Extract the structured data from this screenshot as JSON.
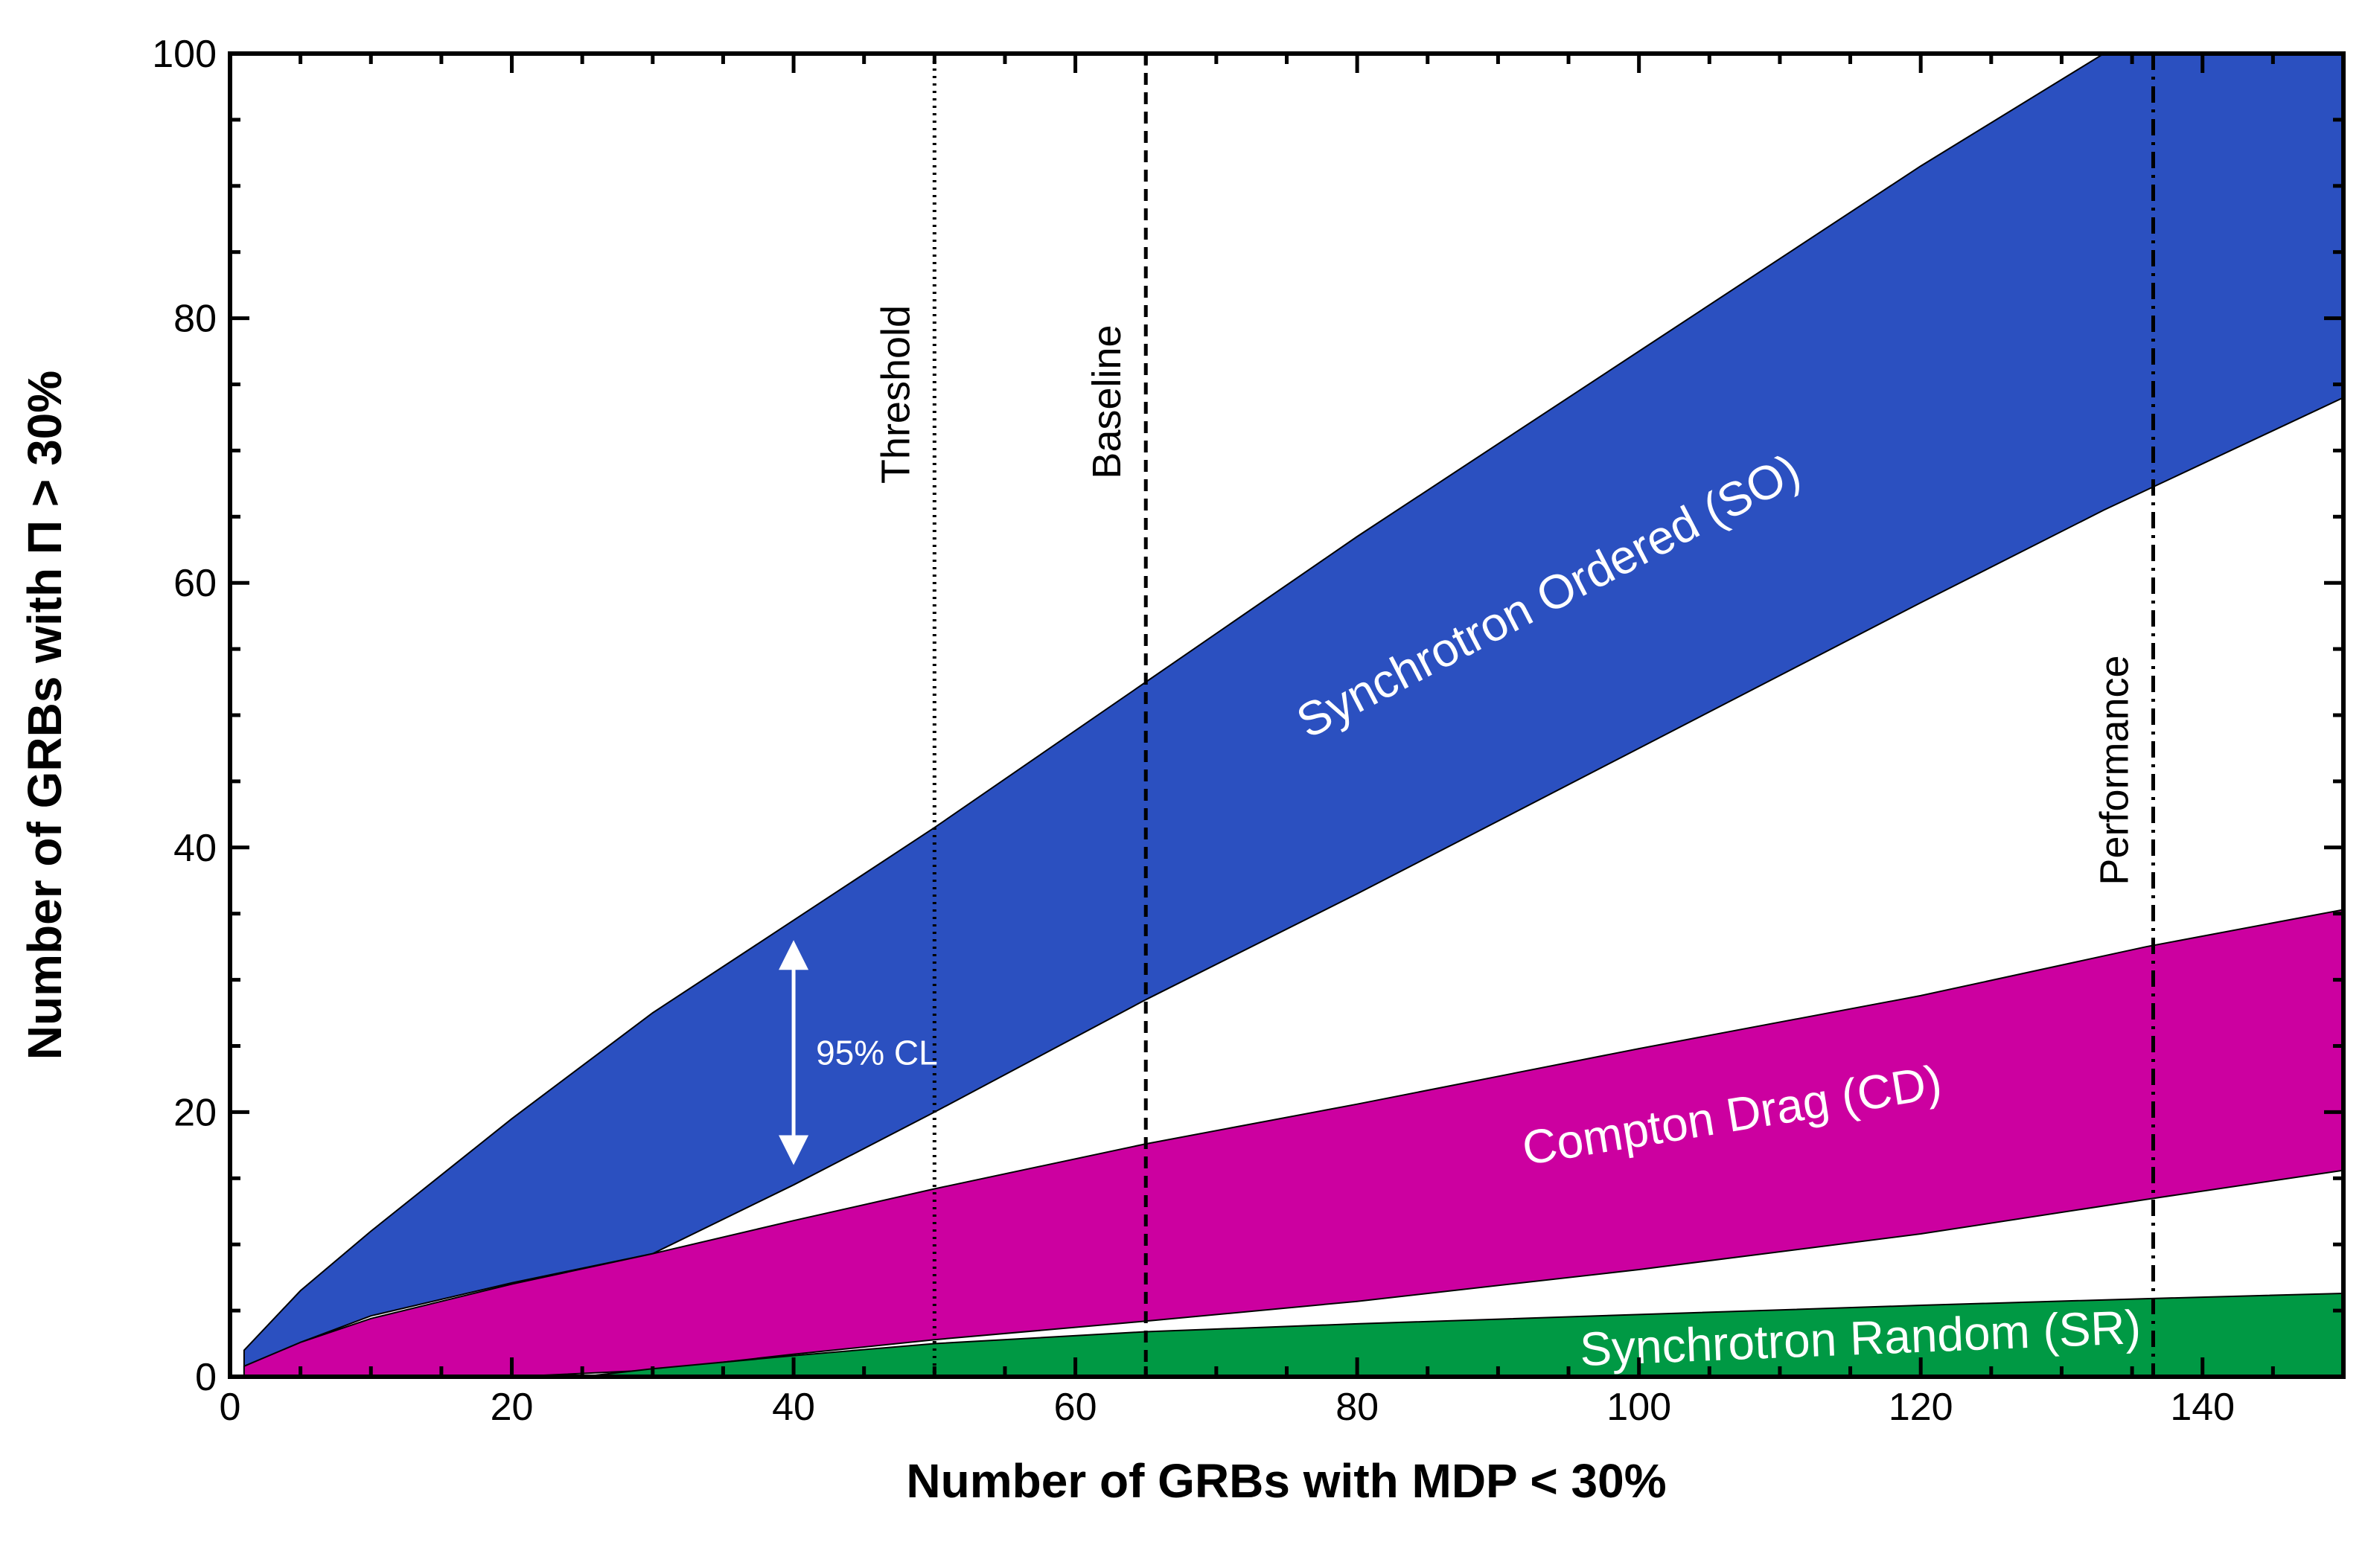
{
  "chart_data": {
    "type": "area",
    "title": "",
    "xlabel": "Number of GRBs with MDP < 30%",
    "ylabel": "Number of GRBs with Π > 30%",
    "xlim": [
      0,
      150
    ],
    "ylim": [
      0,
      100
    ],
    "xticks": [
      0,
      20,
      40,
      60,
      80,
      100,
      120,
      140
    ],
    "yticks": [
      0,
      20,
      40,
      60,
      80,
      100
    ],
    "grid": false,
    "bands": [
      {
        "name": "Synchrotron Ordered (SO)",
        "label": "Synchrotron Ordered (SO)",
        "color": "#2b50c0",
        "x": [
          1,
          5,
          10,
          20,
          30,
          40,
          50,
          65,
          80,
          100,
          120,
          133,
          150
        ],
        "upper": [
          2,
          6.5,
          11,
          19.5,
          27.5,
          34.5,
          41.5,
          52.5,
          63.5,
          77.5,
          91.5,
          100,
          100
        ],
        "lower": [
          0.3,
          2.6,
          4.6,
          7.1,
          9.3,
          14.5,
          20,
          28.5,
          36.5,
          47.5,
          58.5,
          65.5,
          74
        ]
      },
      {
        "name": "Compton Drag (CD)",
        "label": "Compton Drag (CD)",
        "color": "#cc00a0",
        "x": [
          1,
          5,
          10,
          20,
          30,
          40,
          50,
          65,
          80,
          100,
          120,
          136,
          150
        ],
        "upper": [
          0.8,
          2.6,
          4.4,
          7.0,
          9.3,
          11.8,
          14.2,
          17.6,
          20.6,
          24.8,
          28.8,
          32.5,
          35.3
        ],
        "lower": [
          0,
          0,
          0,
          0,
          0.5,
          1.7,
          2.8,
          4.2,
          5.7,
          8.1,
          10.8,
          13.4,
          15.6
        ]
      },
      {
        "name": "Synchrotron Random (SR)",
        "label": "Synchrotron Random (SR)",
        "color": "#009944",
        "x": [
          1,
          25,
          30,
          40,
          50,
          65,
          80,
          100,
          120,
          136,
          150
        ],
        "upper": [
          0,
          0,
          0.6,
          1.6,
          2.5,
          3.4,
          4.0,
          4.7,
          5.4,
          5.9,
          6.3
        ],
        "lower": [
          0,
          0,
          0,
          0,
          0,
          0,
          0,
          0,
          0,
          0,
          0
        ]
      }
    ],
    "vertical_lines": [
      {
        "label": "Threshold",
        "x": 50,
        "style": "dotted"
      },
      {
        "label": "Baseline",
        "x": 65,
        "style": "dashed"
      },
      {
        "label": "Performance",
        "x": 136.5,
        "style": "dashdot"
      }
    ],
    "annotations": [
      {
        "label": "95% CL",
        "x": 40,
        "y_from": 16,
        "y_to": 33,
        "type": "double-arrow"
      }
    ]
  }
}
